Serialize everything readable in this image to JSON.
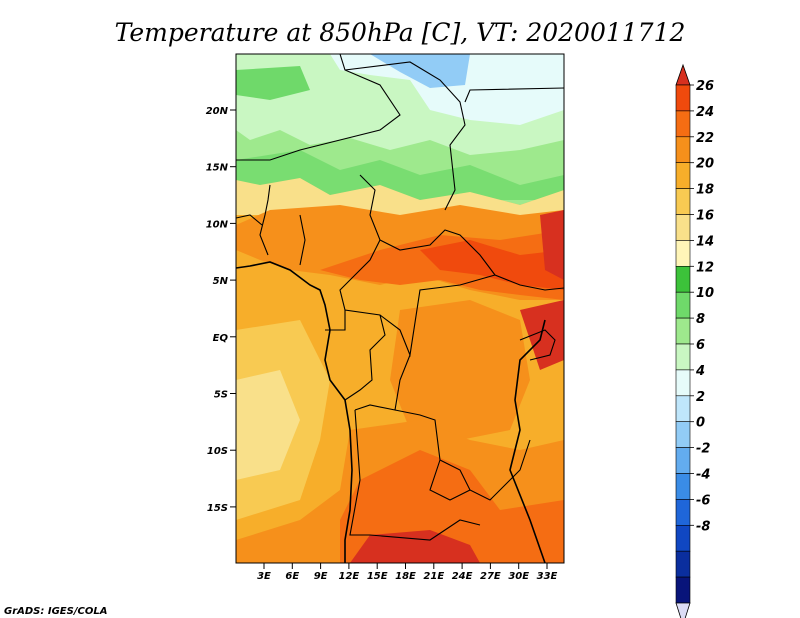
{
  "title": "Temperature at 850hPa [C], VT: 2020011712",
  "credit": "GrADS: IGES/COLA",
  "map": {
    "lat_labels": [
      "20N",
      "15N",
      "10N",
      "5N",
      "EQ",
      "5S",
      "10S",
      "15S"
    ],
    "lon_labels": [
      "3E",
      "6E",
      "9E",
      "12E",
      "15E",
      "18E",
      "21E",
      "24E",
      "27E",
      "30E",
      "33E"
    ]
  },
  "colorbar": {
    "labels": [
      "26",
      "24",
      "22",
      "20",
      "18",
      "16",
      "14",
      "12",
      "10",
      "8",
      "6",
      "4",
      "2",
      "0",
      "-2",
      "-4",
      "-6",
      "-8"
    ],
    "colors": [
      "#d7301f",
      "#f04a0d",
      "#f56d13",
      "#f6901b",
      "#f7ae2a",
      "#f8ca52",
      "#f9e08a",
      "#fff5b8",
      "#3cc23a",
      "#6fd96a",
      "#9ee98d",
      "#c9f7c2",
      "#e6fbfa",
      "#bfe6fb",
      "#92ccf6",
      "#63acef",
      "#3a8ce6",
      "#1f66d9",
      "#1047c2",
      "#0a2e9e",
      "#08147a",
      "#dcdcf5"
    ]
  }
}
